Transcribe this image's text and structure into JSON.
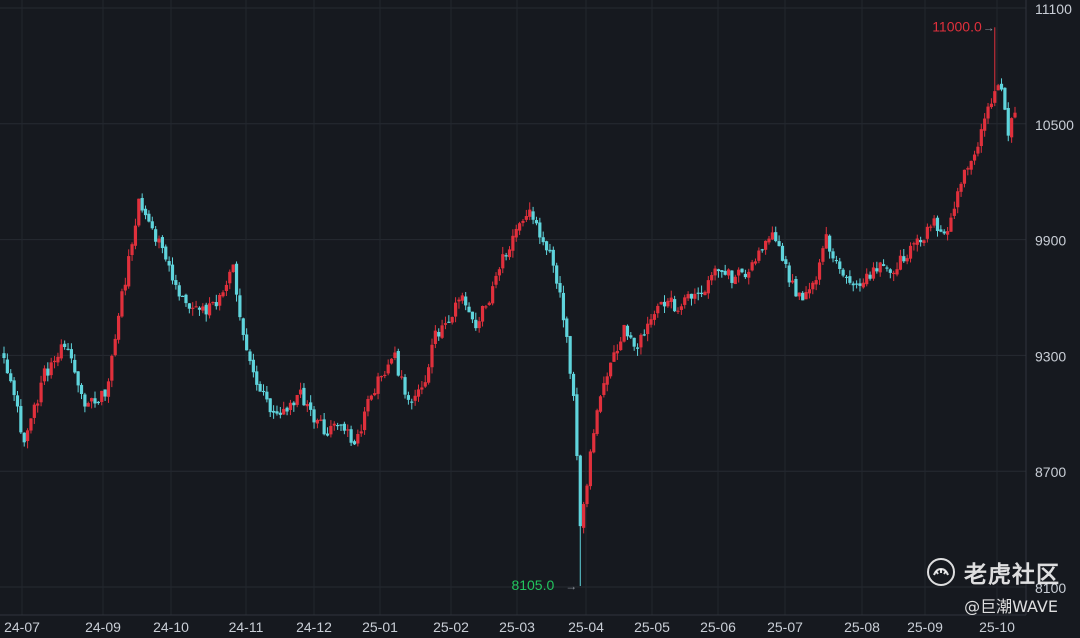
{
  "chart_data": {
    "type": "candlestick",
    "y_ticks": [
      "11100",
      "10500",
      "9900",
      "9300",
      "8700",
      "8100"
    ],
    "y_tick_values": [
      11100,
      10500,
      9900,
      9300,
      8700,
      8100
    ],
    "x_labels": [
      "24-07",
      "24-09",
      "24-10",
      "24-11",
      "24-12",
      "25-01",
      "25-02",
      "25-03",
      "25-04",
      "25-05",
      "25-06",
      "25-07",
      "25-08",
      "25-09",
      "25-10"
    ],
    "ylim": [
      8100,
      11100
    ],
    "grid": true,
    "annotations": {
      "high": {
        "label": "11000.0",
        "value": 11000,
        "color": "#e0303c"
      },
      "low": {
        "label": "8105.0",
        "value": 8105,
        "color": "#22c55e"
      }
    },
    "up_color": "#e0303c",
    "down_color": "#5fd4dc",
    "keypoints": [
      [
        0,
        9320
      ],
      [
        6,
        8850
      ],
      [
        12,
        9200
      ],
      [
        18,
        9350
      ],
      [
        24,
        9050
      ],
      [
        30,
        9100
      ],
      [
        36,
        9700
      ],
      [
        40,
        10080
      ],
      [
        44,
        9950
      ],
      [
        48,
        9800
      ],
      [
        52,
        9600
      ],
      [
        56,
        9550
      ],
      [
        60,
        9520
      ],
      [
        64,
        9600
      ],
      [
        68,
        9750
      ],
      [
        72,
        9300
      ],
      [
        76,
        9120
      ],
      [
        80,
        8980
      ],
      [
        84,
        9000
      ],
      [
        88,
        9100
      ],
      [
        92,
        8980
      ],
      [
        96,
        8900
      ],
      [
        100,
        8960
      ],
      [
        104,
        8820
      ],
      [
        108,
        9050
      ],
      [
        112,
        9200
      ],
      [
        116,
        9280
      ],
      [
        120,
        9080
      ],
      [
        124,
        9100
      ],
      [
        128,
        9400
      ],
      [
        132,
        9480
      ],
      [
        136,
        9600
      ],
      [
        140,
        9450
      ],
      [
        144,
        9600
      ],
      [
        148,
        9800
      ],
      [
        152,
        9950
      ],
      [
        156,
        10050
      ],
      [
        160,
        9900
      ],
      [
        163,
        9800
      ],
      [
        166,
        9500
      ],
      [
        169,
        9100
      ],
      [
        171,
        8450
      ],
      [
        173,
        8650
      ],
      [
        176,
        9050
      ],
      [
        180,
        9250
      ],
      [
        184,
        9450
      ],
      [
        188,
        9350
      ],
      [
        192,
        9500
      ],
      [
        196,
        9580
      ],
      [
        200,
        9550
      ],
      [
        204,
        9600
      ],
      [
        208,
        9650
      ],
      [
        212,
        9750
      ],
      [
        216,
        9700
      ],
      [
        220,
        9720
      ],
      [
        224,
        9820
      ],
      [
        228,
        9920
      ],
      [
        232,
        9750
      ],
      [
        236,
        9600
      ],
      [
        240,
        9650
      ],
      [
        244,
        9900
      ],
      [
        248,
        9750
      ],
      [
        252,
        9650
      ],
      [
        256,
        9700
      ],
      [
        260,
        9780
      ],
      [
        264,
        9750
      ],
      [
        268,
        9820
      ],
      [
        272,
        9900
      ],
      [
        276,
        9980
      ],
      [
        280,
        9950
      ],
      [
        284,
        10200
      ],
      [
        288,
        10350
      ],
      [
        292,
        10600
      ],
      [
        296,
        10700
      ],
      [
        298,
        10450
      ],
      [
        300,
        10580
      ]
    ]
  },
  "watermark": {
    "brand": "老虎社区",
    "author": "@巨潮WAVE",
    "icon": "tiger-paw-icon"
  }
}
